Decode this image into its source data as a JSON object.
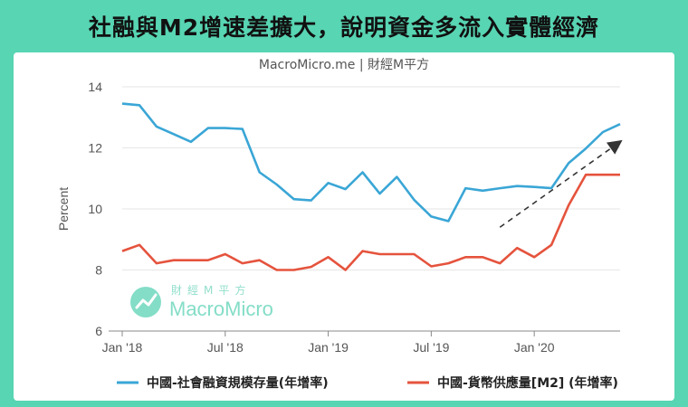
{
  "title": "社融與M2增速差擴大，說明資金多流入實體經濟",
  "source": "MacroMicro.me | 財經M平方",
  "watermark": {
    "brand": "MacroMicro",
    "sub": "財經M平方"
  },
  "colors": {
    "background": "#58d5b3",
    "series1": "#3aa6d6",
    "series2": "#e5533d",
    "arrow": "#333333"
  },
  "chart_data": {
    "type": "line",
    "title": "社融與M2增速差擴大，說明資金多流入實體經濟",
    "ylabel": "Percent",
    "xlabel": "",
    "ylim": [
      6,
      14
    ],
    "yticks": [
      6,
      8,
      10,
      12,
      14
    ],
    "x_start": "2018-01",
    "x_end": "2020-06",
    "x_ticks": [
      {
        "date": "2018-01",
        "label": "Jan '18"
      },
      {
        "date": "2018-07",
        "label": "Jul '18"
      },
      {
        "date": "2019-01",
        "label": "Jan '19"
      },
      {
        "date": "2019-07",
        "label": "Jul '19"
      },
      {
        "date": "2020-01",
        "label": "Jan '20"
      }
    ],
    "grid": true,
    "legend_position": "bottom",
    "annotations": [
      {
        "type": "dashed-arrow",
        "from": {
          "date": "2019-11",
          "y": 9.4
        },
        "to": {
          "date": "2020-06",
          "y": 12.2
        }
      }
    ],
    "series": [
      {
        "name": "中國-社會融資規模存量(年增率)",
        "points": [
          [
            "2018-01",
            13.45
          ],
          [
            "2018-02",
            13.4
          ],
          [
            "2018-03",
            12.7
          ],
          [
            "2018-04",
            12.45
          ],
          [
            "2018-05",
            12.2
          ],
          [
            "2018-06",
            12.65
          ],
          [
            "2018-07",
            12.65
          ],
          [
            "2018-08",
            12.62
          ],
          [
            "2018-09",
            11.2
          ],
          [
            "2018-10",
            10.8
          ],
          [
            "2018-11",
            10.32
          ],
          [
            "2018-12",
            10.28
          ],
          [
            "2019-01",
            10.85
          ],
          [
            "2019-02",
            10.65
          ],
          [
            "2019-03",
            11.2
          ],
          [
            "2019-04",
            10.5
          ],
          [
            "2019-05",
            11.05
          ],
          [
            "2019-06",
            10.3
          ],
          [
            "2019-07",
            9.75
          ],
          [
            "2019-08",
            9.6
          ],
          [
            "2019-09",
            10.68
          ],
          [
            "2019-10",
            10.6
          ],
          [
            "2019-11",
            10.68
          ],
          [
            "2019-12",
            10.75
          ],
          [
            "2020-01",
            10.72
          ],
          [
            "2020-02",
            10.68
          ],
          [
            "2020-03",
            11.5
          ],
          [
            "2020-04",
            11.98
          ],
          [
            "2020-05",
            12.52
          ],
          [
            "2020-06",
            12.78
          ]
        ]
      },
      {
        "name": "中國-貨幣供應量[M2] (年增率)",
        "points": [
          [
            "2018-01",
            8.62
          ],
          [
            "2018-02",
            8.82
          ],
          [
            "2018-03",
            8.22
          ],
          [
            "2018-04",
            8.32
          ],
          [
            "2018-05",
            8.32
          ],
          [
            "2018-06",
            8.32
          ],
          [
            "2018-07",
            8.52
          ],
          [
            "2018-08",
            8.22
          ],
          [
            "2018-09",
            8.32
          ],
          [
            "2018-10",
            8.0
          ],
          [
            "2018-11",
            8.0
          ],
          [
            "2018-12",
            8.1
          ],
          [
            "2019-01",
            8.42
          ],
          [
            "2019-02",
            8.0
          ],
          [
            "2019-03",
            8.62
          ],
          [
            "2019-04",
            8.52
          ],
          [
            "2019-05",
            8.52
          ],
          [
            "2019-06",
            8.52
          ],
          [
            "2019-07",
            8.12
          ],
          [
            "2019-08",
            8.22
          ],
          [
            "2019-09",
            8.42
          ],
          [
            "2019-10",
            8.42
          ],
          [
            "2019-11",
            8.22
          ],
          [
            "2019-12",
            8.72
          ],
          [
            "2020-01",
            8.42
          ],
          [
            "2020-02",
            8.82
          ],
          [
            "2020-03",
            10.12
          ],
          [
            "2020-04",
            11.12
          ],
          [
            "2020-05",
            11.12
          ],
          [
            "2020-06",
            11.12
          ]
        ]
      }
    ]
  }
}
